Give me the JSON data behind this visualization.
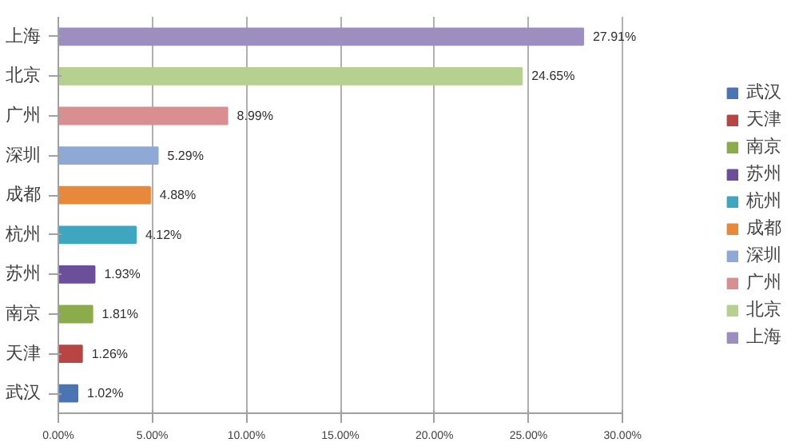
{
  "chart_data": {
    "type": "bar",
    "orientation": "horizontal",
    "stacked": true,
    "categories": [
      "上海",
      "北京",
      "广州",
      "深圳",
      "成都",
      "杭州",
      "苏州",
      "南京",
      "天津",
      "武汉"
    ],
    "series": [
      {
        "name": "武汉",
        "color": "#4a74b4",
        "values": [
          null,
          null,
          null,
          null,
          null,
          null,
          null,
          null,
          null,
          1.02
        ],
        "value_labels": [
          null,
          null,
          null,
          null,
          null,
          null,
          null,
          null,
          null,
          "1.02%"
        ]
      },
      {
        "name": "天津",
        "color": "#b94444",
        "values": [
          null,
          null,
          null,
          null,
          null,
          null,
          null,
          null,
          1.26,
          null
        ],
        "value_labels": [
          null,
          null,
          null,
          null,
          null,
          null,
          null,
          null,
          "1.26%",
          null
        ]
      },
      {
        "name": "南京",
        "color": "#8cab4a",
        "values": [
          null,
          null,
          null,
          null,
          null,
          null,
          null,
          1.81,
          null,
          null
        ],
        "value_labels": [
          null,
          null,
          null,
          null,
          null,
          null,
          null,
          "1.81%",
          null,
          null
        ]
      },
      {
        "name": "苏州",
        "color": "#6b4f9a",
        "values": [
          null,
          null,
          null,
          null,
          null,
          null,
          1.93,
          null,
          null,
          null
        ],
        "value_labels": [
          null,
          null,
          null,
          null,
          null,
          null,
          "1.93%",
          null,
          null,
          null
        ]
      },
      {
        "name": "杭州",
        "color": "#3fa6c0",
        "values": [
          null,
          null,
          null,
          null,
          null,
          4.12,
          null,
          null,
          null,
          null
        ],
        "value_labels": [
          null,
          null,
          null,
          null,
          null,
          "4.12%",
          null,
          null,
          null,
          null
        ]
      },
      {
        "name": "成都",
        "color": "#e8883a",
        "values": [
          null,
          null,
          null,
          null,
          4.88,
          null,
          null,
          null,
          null,
          null
        ],
        "value_labels": [
          null,
          null,
          null,
          null,
          "4.88%",
          null,
          null,
          null,
          null,
          null
        ]
      },
      {
        "name": "深圳",
        "color": "#8ea9d6",
        "values": [
          null,
          null,
          null,
          5.29,
          null,
          null,
          null,
          null,
          null,
          null
        ],
        "value_labels": [
          null,
          null,
          null,
          "5.29%",
          null,
          null,
          null,
          null,
          null,
          null
        ]
      },
      {
        "name": "广州",
        "color": "#d98f8f",
        "values": [
          null,
          null,
          8.99,
          null,
          null,
          null,
          null,
          null,
          null,
          null
        ],
        "value_labels": [
          null,
          null,
          "8.99%",
          null,
          null,
          null,
          null,
          null,
          null,
          null
        ]
      },
      {
        "name": "北京",
        "color": "#b5d08f",
        "values": [
          null,
          24.65,
          null,
          null,
          null,
          null,
          null,
          null,
          null,
          null
        ],
        "value_labels": [
          null,
          "24.65%",
          null,
          null,
          null,
          null,
          null,
          null,
          null,
          null
        ]
      },
      {
        "name": "上海",
        "color": "#9c8fc0",
        "values": [
          27.91,
          null,
          null,
          null,
          null,
          null,
          null,
          null,
          null,
          null
        ],
        "value_labels": [
          "27.91%",
          null,
          null,
          null,
          null,
          null,
          null,
          null,
          null,
          null
        ]
      }
    ],
    "xlim": [
      0,
      30
    ],
    "xticks": [
      {
        "value": 0,
        "label": "0.00%"
      },
      {
        "value": 5,
        "label": "5.00%"
      },
      {
        "value": 10,
        "label": "10.00%"
      },
      {
        "value": 15,
        "label": "15.00%"
      },
      {
        "value": 20,
        "label": "20.00%"
      },
      {
        "value": 25,
        "label": "25.00%"
      },
      {
        "value": 30,
        "label": "30.00%"
      }
    ],
    "grid": "x",
    "legend": "right"
  }
}
